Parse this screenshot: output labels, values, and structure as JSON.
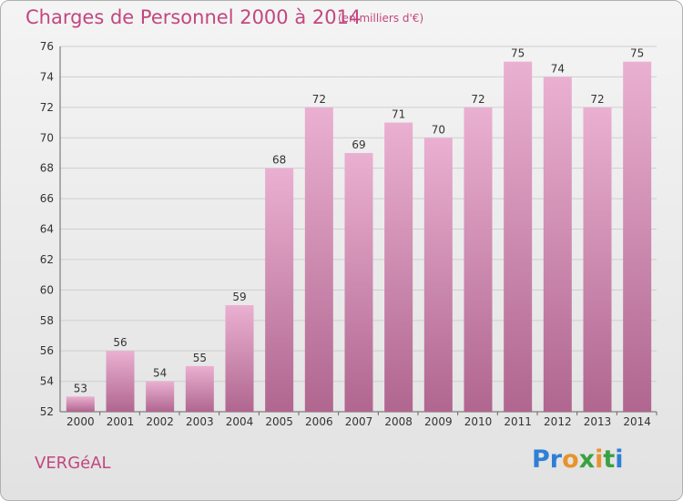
{
  "header": {
    "title": "Charges de Personnel 2000 à 2014",
    "subtitle": "(en milliers d'€)"
  },
  "footer": {
    "commune": "VERGéAL",
    "brand": "Proxiti"
  },
  "colors": {
    "accent": "#c2477f",
    "bar_top": "#eab0d1",
    "bar_bottom": "#b0668f",
    "grid": "#cfcfcf",
    "logo_letters": [
      "#2f7fd6",
      "#2f7fd6",
      "#e8932d",
      "#3aa142",
      "#e8932d",
      "#3aa142",
      "#2f7fd6"
    ]
  },
  "chart_data": {
    "type": "bar",
    "title": "Charges de Personnel 2000 à 2014",
    "subtitle": "(en milliers d'€)",
    "xlabel": "",
    "ylabel": "",
    "categories": [
      "2000",
      "2001",
      "2002",
      "2003",
      "2004",
      "2005",
      "2006",
      "2007",
      "2008",
      "2009",
      "2010",
      "2011",
      "2012",
      "2013",
      "2014"
    ],
    "values": [
      53,
      56,
      54,
      55,
      59,
      68,
      72,
      69,
      71,
      70,
      72,
      75,
      74,
      72,
      75
    ],
    "ylim": [
      52,
      76
    ],
    "yticks": [
      52,
      54,
      56,
      58,
      60,
      62,
      64,
      66,
      68,
      70,
      72,
      74,
      76
    ],
    "grid": true,
    "legend": "none"
  }
}
